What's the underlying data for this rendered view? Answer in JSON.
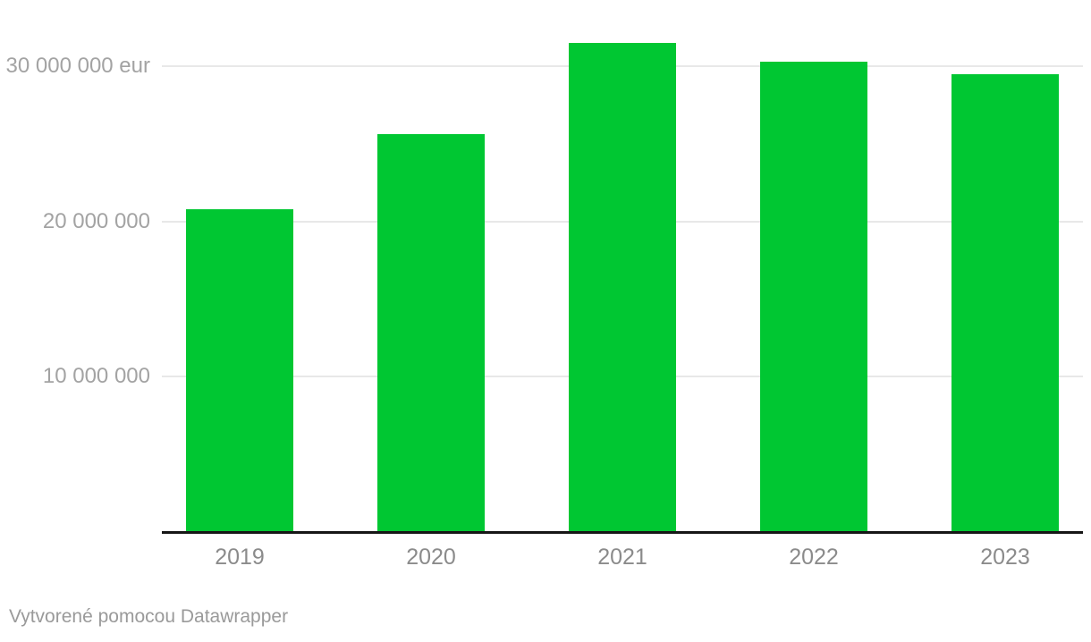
{
  "chart_data": {
    "type": "bar",
    "title": "",
    "xlabel": "",
    "ylabel": "eur",
    "categories": [
      "2019",
      "2020",
      "2021",
      "2022",
      "2023"
    ],
    "values": [
      20800000,
      25600000,
      31500000,
      30300000,
      29500000
    ],
    "unit": "eur",
    "ylim": [
      0,
      34300000
    ],
    "yticks": [
      {
        "value": 10000000,
        "label": "10 000 000"
      },
      {
        "value": 20000000,
        "label": "20 000 000"
      },
      {
        "value": 30000000,
        "label": "30 000 000 eur"
      }
    ],
    "grid": true,
    "legend": "none",
    "bar_color": "#00c732"
  },
  "footer": {
    "prefix": "Vytvorené pomocou ",
    "link_label": "Datawrapper"
  },
  "colors": {
    "background": "#ffffff",
    "bar": "#00c732",
    "gridline": "#e8e8e8",
    "axis_line": "#161616",
    "ytick_text": "#a3a3a3",
    "xtick_text": "#8b8b8b",
    "footer_text": "#9a9a9a"
  }
}
